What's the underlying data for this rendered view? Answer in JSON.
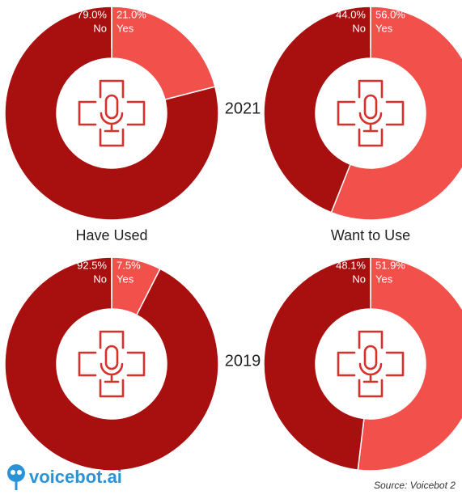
{
  "chart_data": [
    {
      "type": "pie",
      "categories": [
        "No",
        "Yes"
      ],
      "values": [
        79.0,
        21.0
      ],
      "value_labels": [
        "79.0%",
        "21.0%"
      ],
      "colors": [
        "#a80f0f",
        "#f2504b"
      ]
    },
    {
      "type": "pie",
      "categories": [
        "No",
        "Yes"
      ],
      "values": [
        44.0,
        56.0
      ],
      "value_labels": [
        "44.0%",
        "56.0%"
      ],
      "colors": [
        "#a80f0f",
        "#f2504b"
      ]
    },
    {
      "type": "pie",
      "categories": [
        "No",
        "Yes"
      ],
      "values": [
        92.5,
        7.5
      ],
      "value_labels": [
        "92.5%",
        "7.5%"
      ],
      "colors": [
        "#a80f0f",
        "#f2504b"
      ]
    },
    {
      "type": "pie",
      "categories": [
        "No",
        "Yes"
      ],
      "values": [
        48.1,
        51.9
      ],
      "value_labels": [
        "48.1%",
        "51.9%"
      ],
      "colors": [
        "#a80f0f",
        "#f2504b"
      ]
    }
  ],
  "column_labels": [
    "Have Used",
    "Want to Use"
  ],
  "year_labels": [
    "2021",
    "2019"
  ],
  "logo": "voicebot.ai",
  "source": "Source: Voicebot 2"
}
